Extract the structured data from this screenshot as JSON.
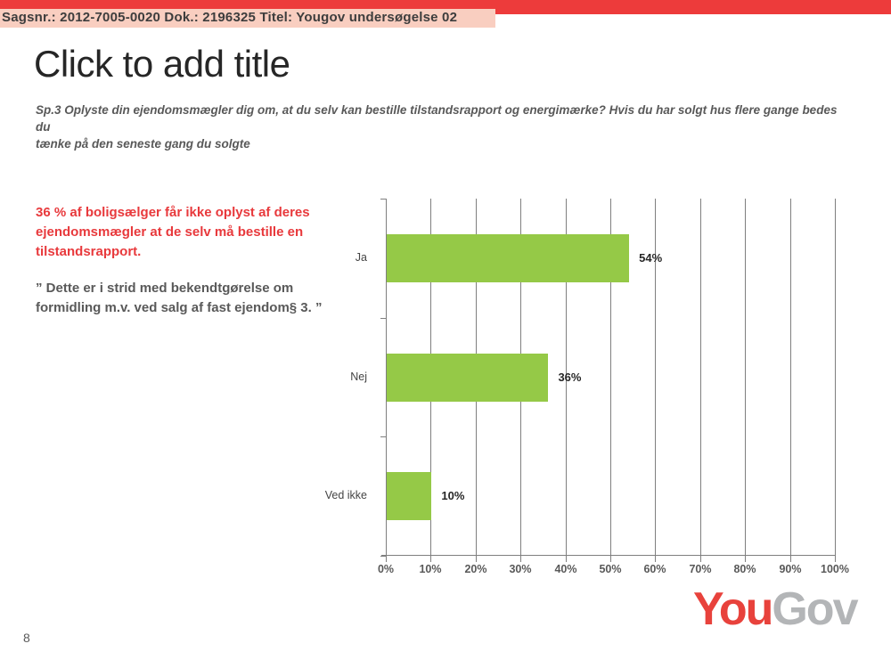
{
  "header": {
    "doc_ref": "Sagsnr.: 2012-7005-0020 Dok.: 2196325 Titel: Yougov undersøgelse 02"
  },
  "slide": {
    "title": "Click to add title",
    "question": "Sp.3 Oplyste din ejendomsmægler dig om, at du selv kan bestille tilstandsrapport og energimærke? Hvis du har solgt hus flere gange bedes du\ntænke på den seneste gang du solgte",
    "highlight_text": "36 % af boligsælger får ikke oplyst af deres\nejendomsmægler at de selv må bestille en\ntilstandsrapport.",
    "quote_text": "” Dette er i strid med bekendtgørelse om\nformidling m.v. ved salg af fast ejendom§ 3. ”",
    "page_number": "8"
  },
  "chart_data": {
    "type": "bar",
    "orientation": "horizontal",
    "title": "",
    "xlabel": "",
    "ylabel": "",
    "categories": [
      "Ja",
      "Nej",
      "Ved ikke"
    ],
    "values": [
      54,
      36,
      10
    ],
    "value_labels": [
      "54%",
      "36%",
      "10%"
    ],
    "x_tick_labels": [
      "0%",
      "10%",
      "20%",
      "30%",
      "40%",
      "50%",
      "60%",
      "70%",
      "80%",
      "90%",
      "100%"
    ],
    "xlim": [
      0,
      100
    ],
    "grid": true,
    "legend": false,
    "bar_color": "#95c947"
  },
  "logo": {
    "part1": "You",
    "part2": "Gov"
  },
  "colors": {
    "top_bar_red": "#ed3b3b",
    "header_strip_pink": "#f9cec0",
    "accent_red": "#e8393c",
    "bar_green": "#95c947",
    "gridline_gray": "#7f7f7f",
    "text_gray": "#595959",
    "logo_red": "#e8423c",
    "logo_gray": "#b3b5b7"
  }
}
